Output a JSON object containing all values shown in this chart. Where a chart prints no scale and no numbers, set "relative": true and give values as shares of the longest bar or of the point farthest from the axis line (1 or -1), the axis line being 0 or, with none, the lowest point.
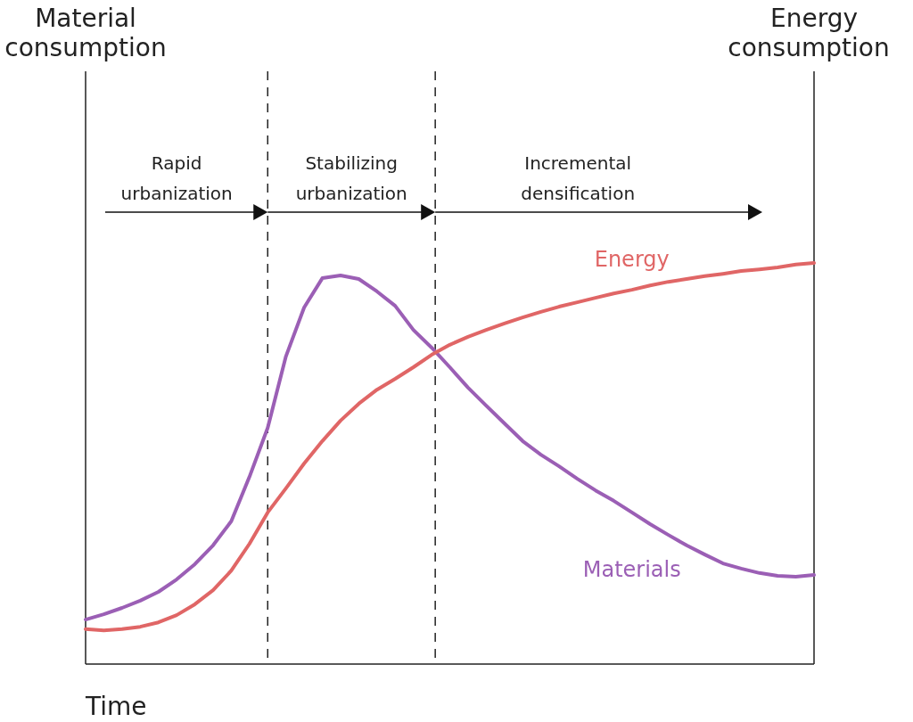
{
  "chart_data": {
    "type": "line",
    "relative": true,
    "xlabel": "Time",
    "categories": [
      null,
      null,
      null,
      null,
      null,
      null,
      null,
      null,
      null,
      null,
      null,
      null,
      null,
      null,
      null,
      null,
      null,
      null,
      null,
      null,
      null,
      null,
      null,
      null,
      null,
      null,
      null,
      null,
      null,
      null,
      null,
      null,
      null,
      null,
      null,
      null,
      null,
      null,
      null,
      null,
      null
    ],
    "annotations": [
      "Material consumption",
      "Energy consumption",
      "Rapid\nurbanization",
      "Stabilizing\nurbanization",
      "Incremental\ndensification"
    ],
    "series": [
      {
        "name": "Materials",
        "color": "#9b5fb5",
        "values": [
          0.111,
          0.124,
          0.14,
          0.158,
          0.18,
          0.211,
          0.249,
          0.296,
          0.356,
          0.467,
          0.589,
          0.767,
          0.889,
          0.962,
          0.969,
          0.96,
          0.929,
          0.893,
          0.833,
          0.789,
          0.74,
          0.689,
          0.644,
          0.6,
          0.556,
          0.522,
          0.493,
          0.462,
          0.433,
          0.407,
          0.378,
          0.349,
          0.322,
          0.296,
          0.273,
          0.251,
          0.238,
          0.227,
          0.22,
          0.218,
          0.222
        ]
      },
      {
        "name": "Energy",
        "color": "#e06666",
        "values": [
          0.087,
          0.084,
          0.087,
          0.093,
          0.104,
          0.122,
          0.149,
          0.184,
          0.233,
          0.3,
          0.378,
          0.438,
          0.5,
          0.556,
          0.607,
          0.649,
          0.684,
          0.711,
          0.74,
          0.771,
          0.796,
          0.816,
          0.833,
          0.849,
          0.864,
          0.878,
          0.891,
          0.902,
          0.913,
          0.924,
          0.933,
          0.944,
          0.953,
          0.96,
          0.967,
          0.973,
          0.98,
          0.984,
          0.989,
          0.996,
          1
        ]
      }
    ]
  }
}
